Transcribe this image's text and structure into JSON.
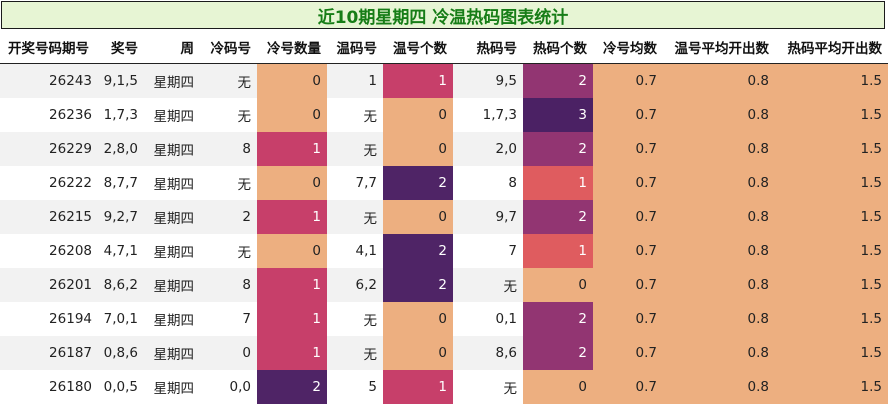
{
  "title": "近10期星期四 冷温热码图表统计",
  "columns": [
    "开奖号码期号",
    "奖号",
    "周",
    "冷码号",
    "冷号数量",
    "温码号",
    "温号个数",
    "热码号",
    "热码个数",
    "冷号均数",
    "温号平均开出数",
    "热码平均开出数"
  ],
  "rows": [
    [
      "26243",
      "9,1,5",
      "星期四",
      "无",
      "0",
      "1",
      "1",
      "9,5",
      "2",
      "0.7",
      "0.8",
      "1.5"
    ],
    [
      "26236",
      "1,7,3",
      "星期四",
      "无",
      "0",
      "无",
      "0",
      "1,7,3",
      "3",
      "0.7",
      "0.8",
      "1.5"
    ],
    [
      "26229",
      "2,8,0",
      "星期四",
      "8",
      "1",
      "无",
      "0",
      "2,0",
      "2",
      "0.7",
      "0.8",
      "1.5"
    ],
    [
      "26222",
      "8,7,7",
      "星期四",
      "无",
      "0",
      "7,7",
      "2",
      "8",
      "1",
      "0.7",
      "0.8",
      "1.5"
    ],
    [
      "26215",
      "9,2,7",
      "星期四",
      "2",
      "1",
      "无",
      "0",
      "9,7",
      "2",
      "0.7",
      "0.8",
      "1.5"
    ],
    [
      "26208",
      "4,7,1",
      "星期四",
      "无",
      "0",
      "4,1",
      "2",
      "7",
      "1",
      "0.7",
      "0.8",
      "1.5"
    ],
    [
      "26201",
      "8,6,2",
      "星期四",
      "8",
      "1",
      "6,2",
      "2",
      "无",
      "0",
      "0.7",
      "0.8",
      "1.5"
    ],
    [
      "26194",
      "7,0,1",
      "星期四",
      "7",
      "1",
      "无",
      "0",
      "0,1",
      "2",
      "0.7",
      "0.8",
      "1.5"
    ],
    [
      "26187",
      "0,8,6",
      "星期四",
      "0",
      "1",
      "无",
      "0",
      "8,6",
      "2",
      "0.7",
      "0.8",
      "1.5"
    ],
    [
      "26180",
      "0,0,5",
      "星期四",
      "0,0",
      "2",
      "5",
      "1",
      "无",
      "0",
      "0.7",
      "0.8",
      "1.5"
    ]
  ],
  "colors": {
    "title_bg": "#e7f5d4",
    "title_text": "#177d17",
    "count_0": "#edaf80",
    "count_1_cold_warm": "#c73f6a",
    "count_1_hot": "#df5c5f",
    "count_2": "#4f2466",
    "count_2_hot": "#923572",
    "count_3": "#4b2164",
    "avg_fill": "#edaf80"
  }
}
